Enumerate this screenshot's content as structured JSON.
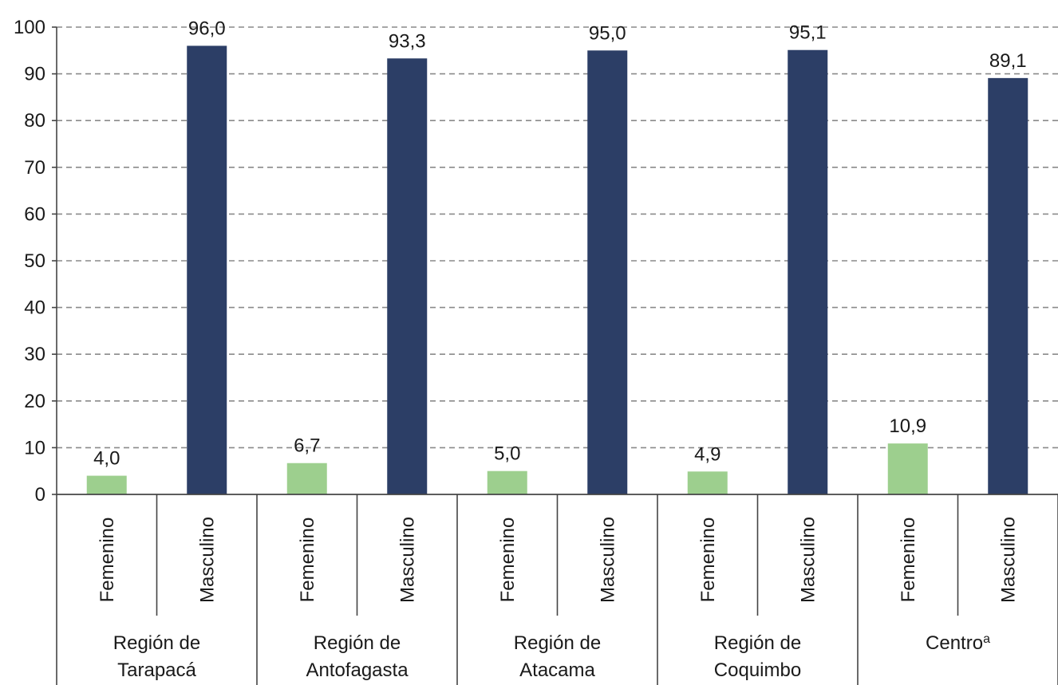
{
  "chart_data": {
    "type": "bar",
    "title": "",
    "xlabel": "",
    "ylabel": "",
    "ylim": [
      0,
      100
    ],
    "yticks": [
      0,
      10,
      20,
      30,
      40,
      50,
      60,
      70,
      80,
      90,
      100
    ],
    "grid": true,
    "legend": "none",
    "groups": [
      {
        "label_lines": [
          "Región de",
          "Tarapacá"
        ],
        "categories": [
          "Femenino",
          "Masculino"
        ],
        "values": [
          4.0,
          96.0
        ],
        "data_labels": [
          "4,0",
          "96,0"
        ]
      },
      {
        "label_lines": [
          "Región de",
          "Antofagasta"
        ],
        "categories": [
          "Femenino",
          "Masculino"
        ],
        "values": [
          6.7,
          93.3
        ],
        "data_labels": [
          "6,7",
          "93,3"
        ]
      },
      {
        "label_lines": [
          "Región de",
          "Atacama"
        ],
        "categories": [
          "Femenino",
          "Masculino"
        ],
        "values": [
          5.0,
          95.0
        ],
        "data_labels": [
          "5,0",
          "95,0"
        ]
      },
      {
        "label_lines": [
          "Región de",
          "Coquimbo"
        ],
        "categories": [
          "Femenino",
          "Masculino"
        ],
        "values": [
          4.9,
          95.1
        ],
        "data_labels": [
          "4,9",
          "95,1"
        ]
      },
      {
        "label_lines": [
          "Centro",
          ""
        ],
        "label_superscript": "a",
        "categories": [
          "Femenino",
          "Masculino"
        ],
        "values": [
          10.9,
          89.1
        ],
        "data_labels": [
          "10,9",
          "89,1"
        ]
      }
    ],
    "colors": {
      "Femenino": "#9dcf8e",
      "Masculino": "#2c3e66"
    }
  }
}
